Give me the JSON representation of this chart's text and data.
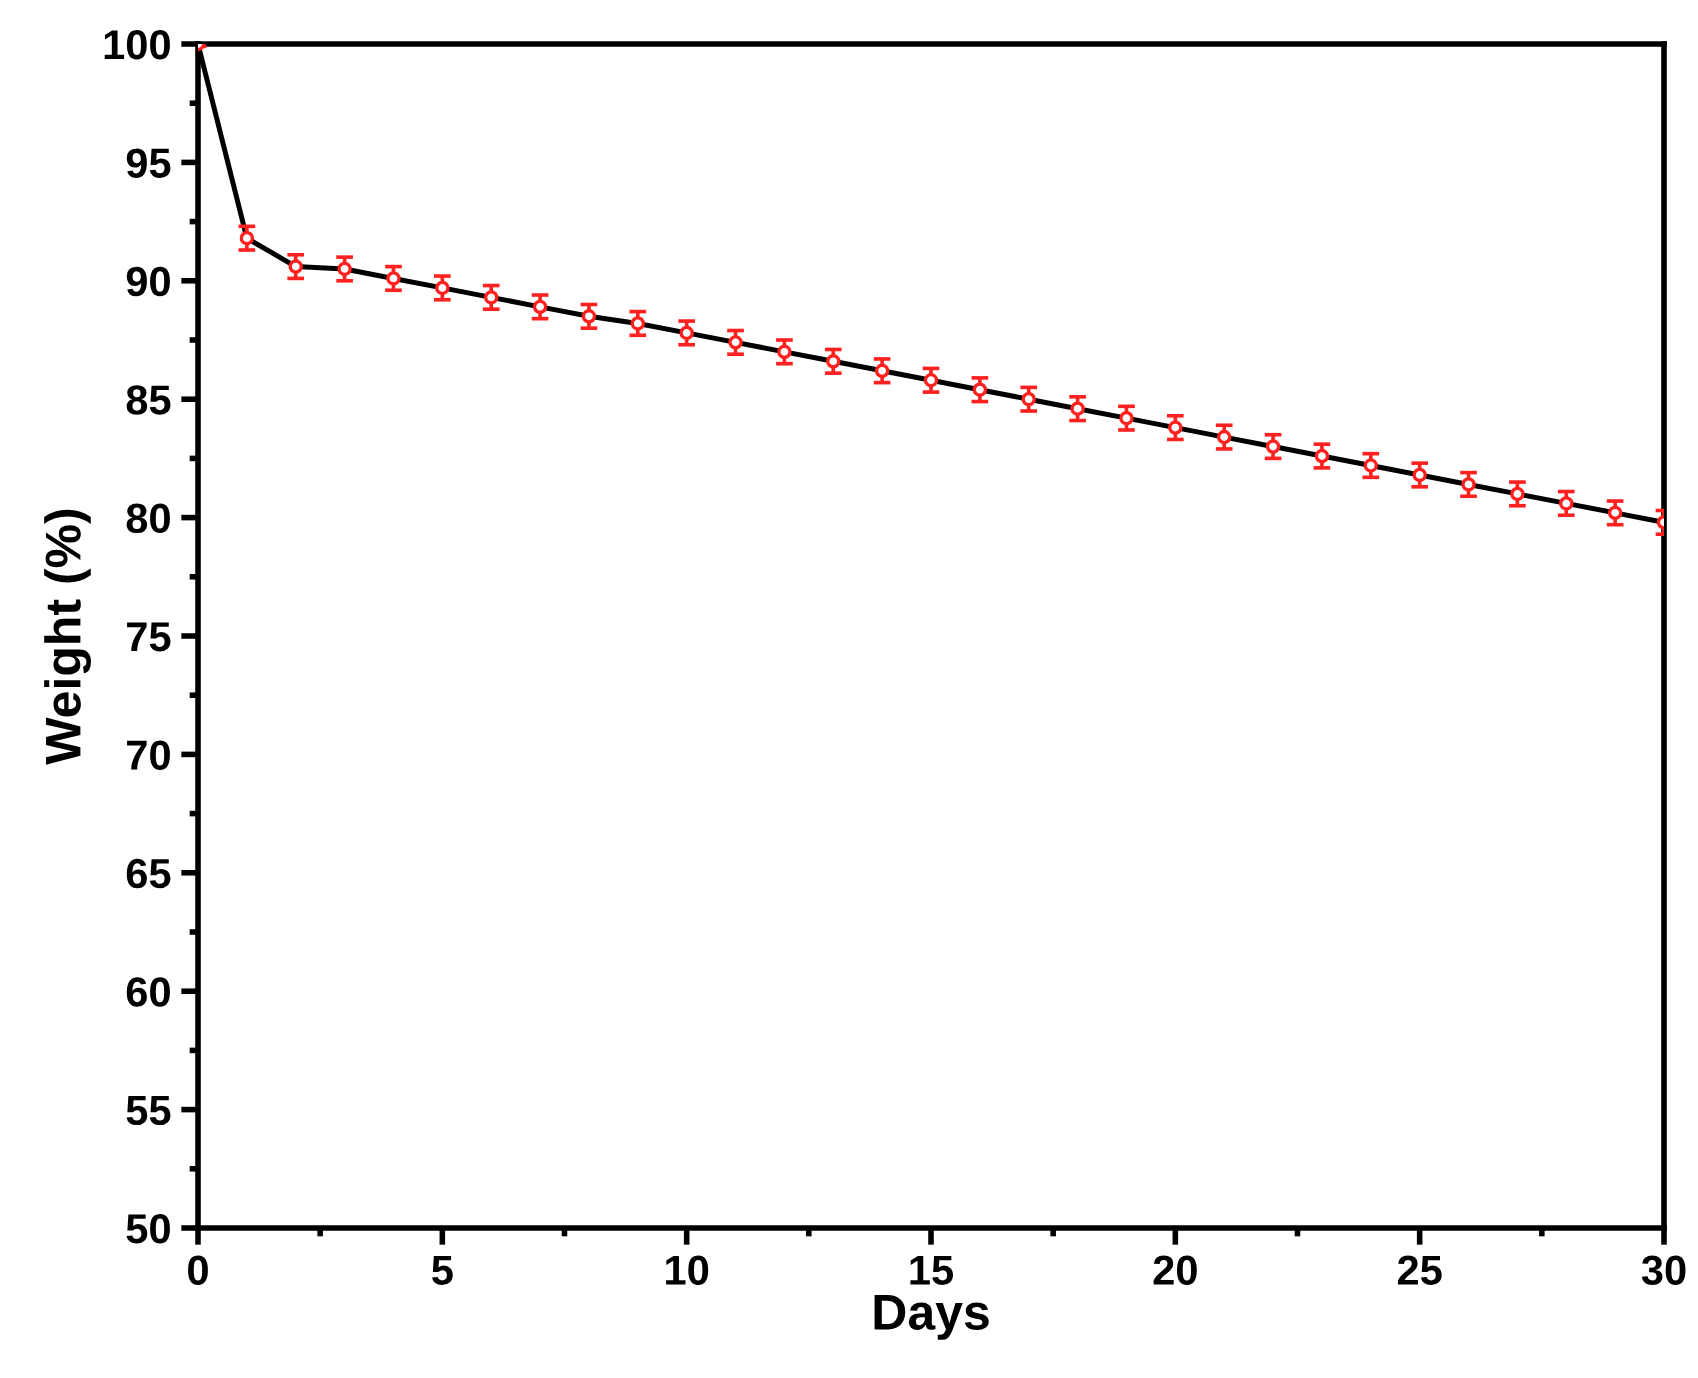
{
  "chart_data": {
    "type": "line",
    "xlabel": "Days",
    "ylabel": "Weight (%)",
    "x": [
      0,
      1,
      2,
      3,
      4,
      5,
      6,
      7,
      8,
      9,
      10,
      11,
      12,
      13,
      14,
      15,
      16,
      17,
      18,
      19,
      20,
      21,
      22,
      23,
      24,
      25,
      26,
      27,
      28,
      29,
      30
    ],
    "series": [
      {
        "color": "#000000",
        "colors": [
          "#ff2020",
          "#ff2020",
          "#ff2020",
          "#ff2020",
          "#ff2020",
          "#ff2020",
          "#ff2020",
          "#ff2020",
          "#ff2020",
          "#ff2020",
          "#ff2020",
          "#ff2020",
          "#ff2020",
          "#ff2020",
          "#ff2020",
          "#ff2020",
          "#ff2020",
          "#ff2020",
          "#ff2020",
          "#ff2020",
          "#ff2020",
          "#ff2020",
          "#ff2020",
          "#ff2020",
          "#ff2020",
          "#ff2020",
          "#ff2020",
          "#ff2020",
          "#ff2020",
          "#ff2020",
          "#ff2020"
        ],
        "values": [
          100,
          91.8,
          90.6,
          90.5,
          90.1,
          89.7,
          89.3,
          88.9,
          88.5,
          88.2,
          87.8,
          87.4,
          87.0,
          86.6,
          86.2,
          85.8,
          85.4,
          85.0,
          84.6,
          84.2,
          83.8,
          83.4,
          83.0,
          82.6,
          82.2,
          81.8,
          81.4,
          81.0,
          80.6,
          80.2,
          79.8
        ],
        "errors": [
          0.1,
          0.5,
          0.5,
          0.5,
          0.5,
          0.5,
          0.5,
          0.5,
          0.5,
          0.5,
          0.5,
          0.5,
          0.5,
          0.5,
          0.5,
          0.5,
          0.5,
          0.5,
          0.5,
          0.5,
          0.5,
          0.5,
          0.5,
          0.5,
          0.5,
          0.5,
          0.5,
          0.5,
          0.5,
          0.5,
          0.5
        ]
      }
    ],
    "xlim": [
      0,
      30
    ],
    "xticks": [
      0,
      5,
      10,
      15,
      20,
      25,
      30
    ],
    "ylim": [
      50,
      100
    ],
    "yticks": [
      50,
      55,
      60,
      65,
      70,
      75,
      80,
      85,
      90,
      95,
      100
    ],
    "grid": false,
    "legend": false,
    "marker": "circle",
    "line_style": "solid"
  }
}
